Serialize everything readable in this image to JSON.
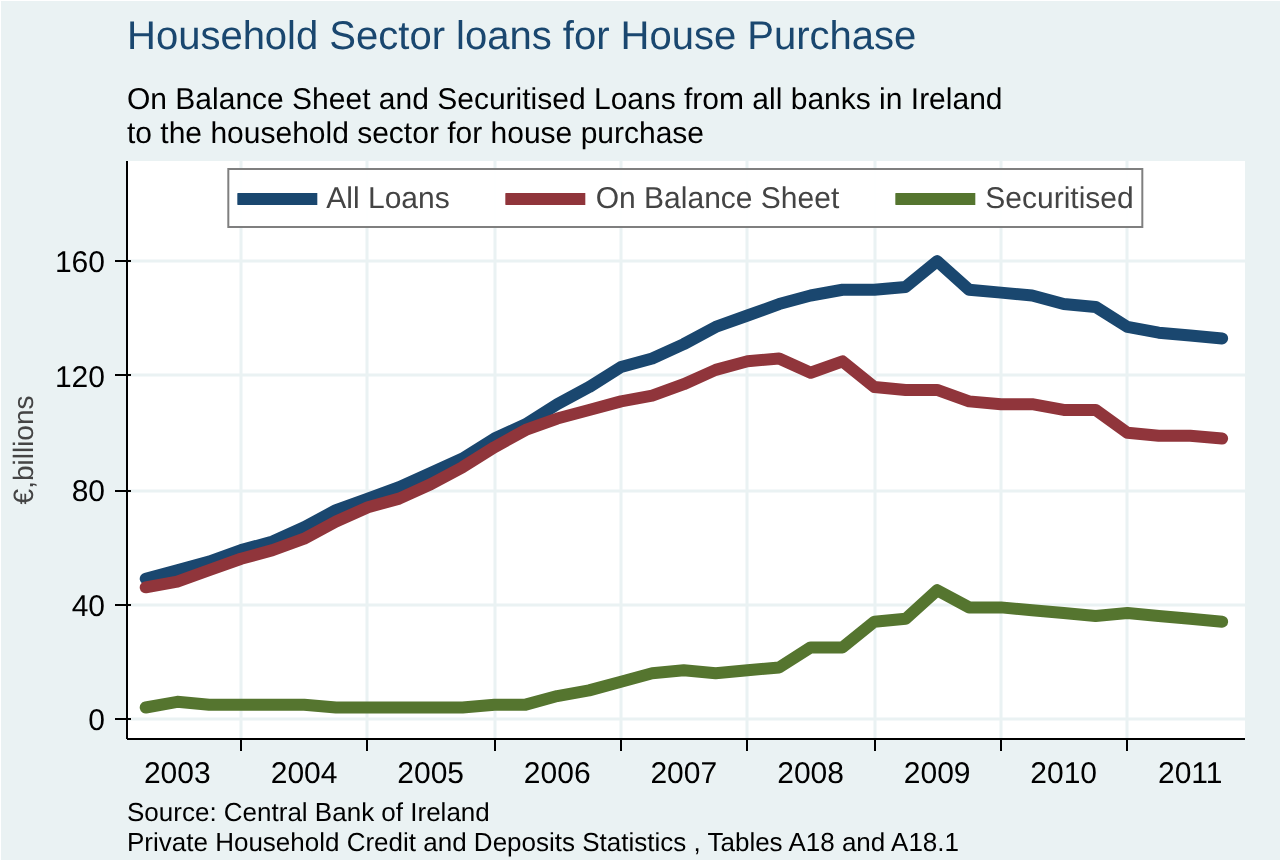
{
  "chart_data": {
    "type": "line",
    "title": "Household Sector loans for House Purchase",
    "subtitle": "On Balance Sheet and Securitised Loans from all banks in Ireland\n          to the household sector for house purchase",
    "ylabel": "€,billions",
    "x": [
      "2003-04",
      "2003-07",
      "2003-10",
      "2004-01",
      "2004-04",
      "2004-07",
      "2004-10",
      "2005-01",
      "2005-04",
      "2005-07",
      "2005-10",
      "2006-01",
      "2006-04",
      "2006-07",
      "2006-10",
      "2007-01",
      "2007-04",
      "2007-07",
      "2007-10",
      "2008-01",
      "2008-04",
      "2008-07",
      "2008-10",
      "2009-01",
      "2009-04",
      "2009-07",
      "2009-10",
      "2010-01",
      "2010-04",
      "2010-07",
      "2010-10",
      "2011-01",
      "2011-04",
      "2011-07",
      "2011-10"
    ],
    "series": [
      {
        "name": "All Loans",
        "color": "#1a476f",
        "values": [
          49,
          52,
          55,
          59,
          62,
          67,
          73,
          77,
          81,
          86,
          91,
          98,
          103,
          110,
          116,
          123,
          126,
          131,
          137,
          141,
          145,
          148,
          150,
          150,
          151,
          160,
          150,
          149,
          148,
          145,
          144,
          137,
          135,
          134,
          133
        ]
      },
      {
        "name": "On Balance Sheet",
        "color": "#90353b",
        "values": [
          46,
          48,
          52,
          56,
          59,
          63,
          69,
          74,
          77,
          82,
          88,
          95,
          101,
          105,
          108,
          111,
          113,
          117,
          122,
          125,
          126,
          121,
          125,
          116,
          115,
          115,
          111,
          110,
          110,
          108,
          108,
          100,
          99,
          99,
          98
        ]
      },
      {
        "name": "Securitised",
        "color": "#55752f",
        "values": [
          4,
          6,
          5,
          5,
          5,
          5,
          4,
          4,
          4,
          4,
          4,
          5,
          5,
          8,
          10,
          13,
          16,
          17,
          16,
          17,
          18,
          25,
          25,
          34,
          35,
          45,
          39,
          39,
          38,
          37,
          36,
          37,
          36,
          35,
          34
        ]
      }
    ],
    "xlim": [
      "2003-02-06",
      "2011-12-06"
    ],
    "xticks": [
      {
        "value": "2003-07",
        "label": "2003"
      },
      {
        "value": "2004-07",
        "label": "2004"
      },
      {
        "value": "2005-07",
        "label": "2005"
      },
      {
        "value": "2006-07",
        "label": "2006"
      },
      {
        "value": "2007-07",
        "label": "2007"
      },
      {
        "value": "2008-07",
        "label": "2008"
      },
      {
        "value": "2009-07",
        "label": "2009"
      },
      {
        "value": "2010-07",
        "label": "2010"
      },
      {
        "value": "2011-07",
        "label": "2011"
      },
      {
        "value": "2004-01",
        "label": null
      },
      {
        "value": "2005-01",
        "label": null
      },
      {
        "value": "2006-01",
        "label": null
      },
      {
        "value": "2007-01",
        "label": null
      },
      {
        "value": "2008-01",
        "label": null
      },
      {
        "value": "2009-01",
        "label": null
      },
      {
        "value": "2010-01",
        "label": null
      },
      {
        "value": "2011-01",
        "label": null
      }
    ],
    "ylim": [
      -7,
      195
    ],
    "yticks": [
      0,
      40,
      80,
      120,
      160
    ],
    "grid": true,
    "legend": "top",
    "line_style": "solid",
    "marker": "none",
    "annotations": [
      "Source: Central Bank of Ireland\n                    Private Household Credit and Deposits Statistics , Tables A18 and A18.1"
    ]
  }
}
